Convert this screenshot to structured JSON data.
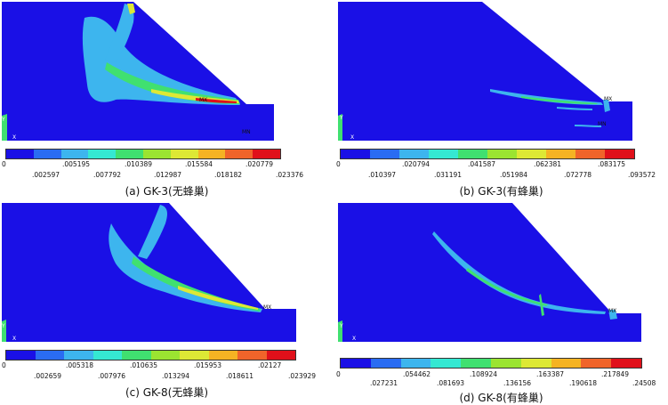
{
  "colors": [
    "#1a10e6",
    "#2a6cf2",
    "#3db5ee",
    "#35e8d2",
    "#40e070",
    "#9be431",
    "#dde835",
    "#f5b323",
    "#f0642a",
    "#e0101a"
  ],
  "panels": [
    {
      "id": "a",
      "caption": "(a) GK-3(无蜂巢)",
      "variant": "no-comb",
      "mx": "MX",
      "mn": "MN",
      "axis_y": "Y",
      "axis_x": "X",
      "ticks_top": [
        "0",
        ".005195",
        ".010389",
        ".015584",
        ".020779"
      ],
      "ticks_bottom": [
        ".002597",
        ".007792",
        ".012987",
        ".018182",
        ".023376"
      ]
    },
    {
      "id": "b",
      "caption": "(b) GK-3(有蜂巢)",
      "variant": "comb",
      "mx": "MX",
      "mn": "MN",
      "axis_y": "Y",
      "axis_x": "X",
      "ticks_top": [
        "0",
        ".020794",
        ".041587",
        ".062381",
        ".083175"
      ],
      "ticks_bottom": [
        ".010397",
        ".031191",
        ".051984",
        ".072778",
        ".093572"
      ]
    },
    {
      "id": "c",
      "caption": "(c) GK-8(无蜂巢)",
      "variant": "no-comb",
      "mx": "MX",
      "mn": "",
      "axis_y": "Y",
      "axis_x": "X",
      "ticks_top": [
        "0",
        ".005318",
        ".010635",
        ".015953",
        ".02127"
      ],
      "ticks_bottom": [
        ".002659",
        ".007976",
        ".013294",
        ".018611",
        ".023929"
      ]
    },
    {
      "id": "d",
      "caption": "(d) GK-8(有蜂巢)",
      "variant": "comb",
      "mx": "MX",
      "mn": "",
      "axis_y": "Y",
      "axis_x": "X",
      "ticks_top": [
        "0",
        ".054462",
        ".108924",
        ".163387",
        ".217849"
      ],
      "ticks_bottom": [
        ".027231",
        ".081693",
        ".136156",
        ".190618",
        ".24508"
      ]
    }
  ]
}
